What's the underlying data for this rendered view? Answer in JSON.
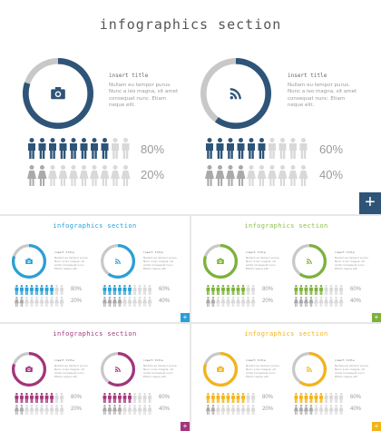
{
  "slides": [
    {
      "title": "infographics section",
      "accent": "#2e5578",
      "title_color": "#555555",
      "left": {
        "icon": "camera-icon",
        "item_title": "insert title",
        "body": "Nullam eu tempor purus. Nunc a leo magna, sit amet consequat nunc. Etiam neque elit.",
        "progress": 0.8,
        "pct_top": "80%",
        "pct_bottom": "20%"
      },
      "right": {
        "icon": "rss-icon",
        "item_title": "insert title",
        "body": "Nullam eu tempor purus. Nunc a leo magna, sit amet consequat nunc. Etiam neque elit.",
        "progress": 0.6,
        "pct_top": "60%",
        "pct_bottom": "40%"
      },
      "add_label": "+"
    },
    {
      "title": "infographics section",
      "accent": "#2a9fd6",
      "title_color": "#2a9fd6",
      "left": {
        "icon": "camera-icon",
        "item_title": "insert title",
        "body": "Nullam eu tempor purus. Nunc a leo magna, sit amet consequat nunc. Etiam neque elit.",
        "progress": 0.8,
        "pct_top": "80%",
        "pct_bottom": "20%"
      },
      "right": {
        "icon": "rss-icon",
        "item_title": "insert title",
        "body": "Nullam eu tempor purus. Nunc a leo magna, sit amet consequat nunc. Etiam neque elit.",
        "progress": 0.6,
        "pct_top": "60%",
        "pct_bottom": "40%"
      },
      "add_label": "+"
    },
    {
      "title": "infographics section",
      "accent": "#7cb23a",
      "title_color": "#8cbf48",
      "left": {
        "icon": "camera-icon",
        "item_title": "insert title",
        "body": "Nullam eu tempor purus. Nunc a leo magna, sit amet consequat nunc. Etiam neque elit.",
        "progress": 0.8,
        "pct_top": "80%",
        "pct_bottom": "20%"
      },
      "right": {
        "icon": "rss-icon",
        "item_title": "insert title",
        "body": "Nullam eu tempor purus. Nunc a leo magna, sit amet consequat nunc. Etiam neque elit.",
        "progress": 0.6,
        "pct_top": "60%",
        "pct_bottom": "40%"
      },
      "add_label": "+"
    },
    {
      "title": "infographics section",
      "accent": "#a3357a",
      "title_color": "#a3357a",
      "left": {
        "icon": "camera-icon",
        "item_title": "insert title",
        "body": "Nullam eu tempor purus. Nunc a leo magna, sit amet consequat nunc. Etiam neque elit.",
        "progress": 0.8,
        "pct_top": "80%",
        "pct_bottom": "20%"
      },
      "right": {
        "icon": "rss-icon",
        "item_title": "insert title",
        "body": "Nullam eu tempor purus. Nunc a leo magna, sit amet consequat nunc. Etiam neque elit.",
        "progress": 0.6,
        "pct_top": "60%",
        "pct_bottom": "40%"
      },
      "add_label": "+"
    },
    {
      "title": "infographics section",
      "accent": "#f2b418",
      "title_color": "#f2b418",
      "left": {
        "icon": "camera-icon",
        "item_title": "insert title",
        "body": "Nullam eu tempor purus. Nunc a leo magna, sit amet consequat nunc. Etiam neque elit.",
        "progress": 0.8,
        "pct_top": "80%",
        "pct_bottom": "20%"
      },
      "right": {
        "icon": "rss-icon",
        "item_title": "insert title",
        "body": "Nullam eu tempor purus. Nunc a leo magna, sit amet consequat nunc. Etiam neque elit.",
        "progress": 0.6,
        "pct_top": "60%",
        "pct_bottom": "40%"
      },
      "add_label": "+"
    }
  ],
  "people_per_row": 10,
  "muted_color": "#d9d9d9",
  "ring_track_color": "#c8c8c8"
}
